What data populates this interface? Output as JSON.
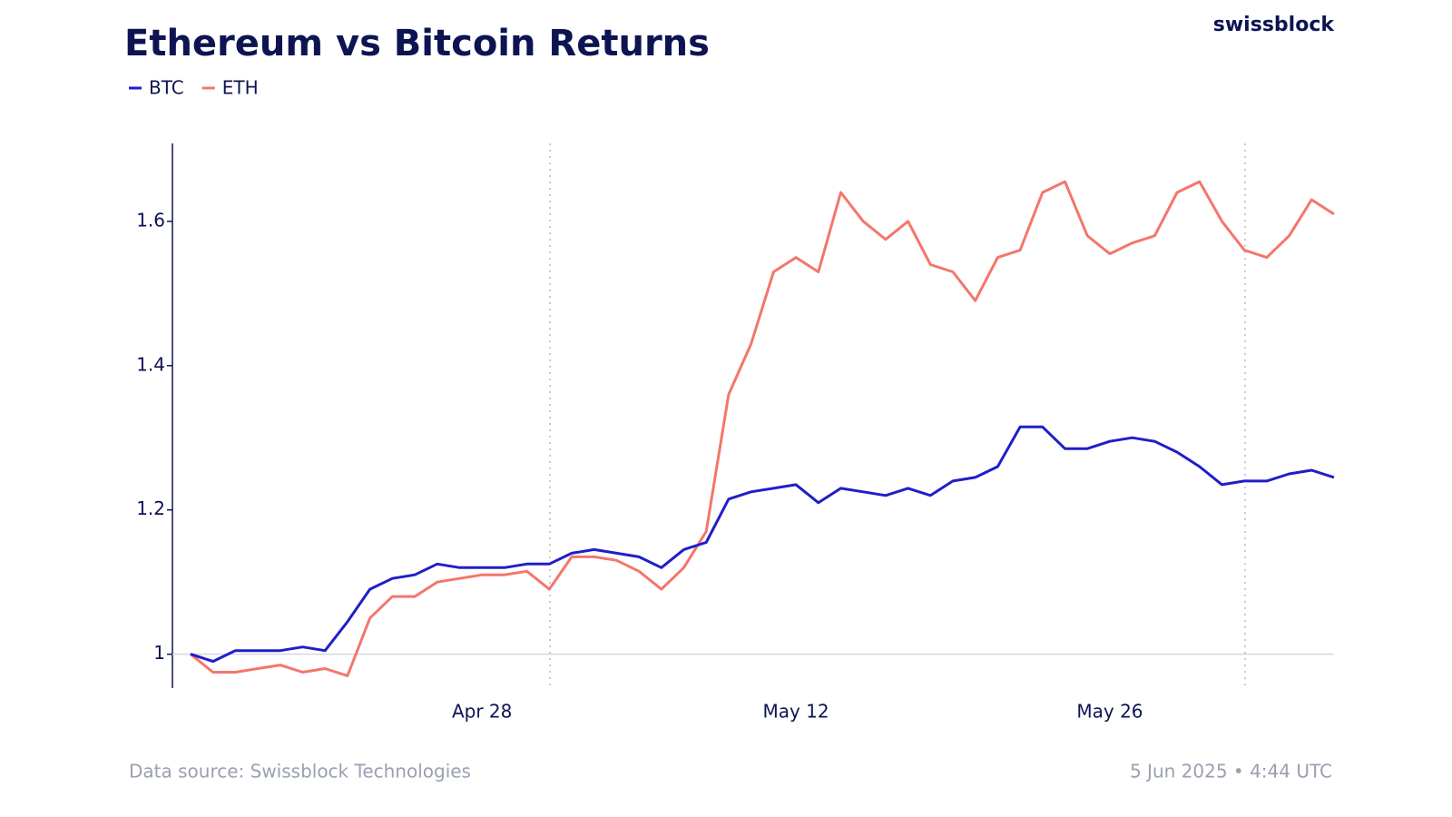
{
  "chart_data": {
    "type": "line",
    "title": "Ethereum vs Bitcoin  Returns",
    "brand": "swissblock",
    "source": "Data source: Swissblock Technologies",
    "timestamp": "5 Jun 2025 • 4:44 UTC",
    "categories": [
      null,
      null,
      null,
      null,
      null,
      null,
      null,
      null,
      null,
      null,
      null,
      null,
      null,
      "Apr 28",
      null,
      null,
      null,
      null,
      null,
      null,
      null,
      null,
      null,
      null,
      null,
      null,
      null,
      "May 12",
      null,
      null,
      null,
      null,
      null,
      null,
      null,
      null,
      null,
      null,
      null,
      null,
      null,
      "May 26",
      null,
      null,
      null,
      null,
      null,
      null,
      null,
      null,
      null,
      null
    ],
    "series": [
      {
        "name": "BTC",
        "color": "#1f1fc8",
        "values": [
          1.0,
          0.99,
          1.005,
          1.005,
          1.005,
          1.01,
          1.005,
          1.045,
          1.09,
          1.105,
          1.11,
          1.125,
          1.12,
          1.12,
          1.12,
          1.125,
          1.125,
          1.14,
          1.145,
          1.14,
          1.135,
          1.12,
          1.145,
          1.155,
          1.215,
          1.225,
          1.23,
          1.235,
          1.21,
          1.23,
          1.225,
          1.22,
          1.23,
          1.22,
          1.24,
          1.245,
          1.26,
          1.315,
          1.315,
          1.285,
          1.285,
          1.295,
          1.3,
          1.295,
          1.28,
          1.26,
          1.235,
          1.24,
          1.24,
          1.25,
          1.255,
          1.245
        ]
      },
      {
        "name": "ETH",
        "color": "#f4766b",
        "values": [
          1.0,
          0.975,
          0.975,
          0.98,
          0.985,
          0.975,
          0.98,
          0.97,
          1.05,
          1.08,
          1.08,
          1.1,
          1.105,
          1.11,
          1.11,
          1.115,
          1.09,
          1.135,
          1.135,
          1.13,
          1.115,
          1.09,
          1.12,
          1.17,
          1.36,
          1.43,
          1.53,
          1.55,
          1.53,
          1.64,
          1.6,
          1.575,
          1.6,
          1.54,
          1.53,
          1.49,
          1.55,
          1.56,
          1.64,
          1.655,
          1.58,
          1.555,
          1.57,
          1.58,
          1.64,
          1.655,
          1.6,
          1.56,
          1.55,
          1.58,
          1.63,
          1.61
        ]
      }
    ],
    "ylim": [
      0.953,
      1.708
    ],
    "yticks": [
      1,
      1.2,
      1.4,
      1.6
    ]
  }
}
